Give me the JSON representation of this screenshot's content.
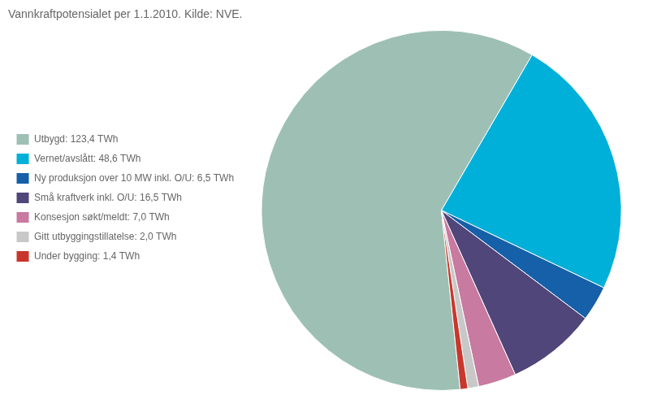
{
  "chart_data": {
    "type": "pie",
    "title": "Vannkraftpotensialet per 1.1.2010. Kilde: NVE.",
    "categories": [
      "Utbygd: 123,4 TWh",
      "Vernet/avslått: 48,6 TWh",
      "Ny produksjon over 10 MW inkl. O/U: 6,5 TWh",
      "Små kraftverk inkl. O/U: 16,5 TWh",
      "Konsesjon søkt/meldt: 7,0 TWh",
      "Gitt utbyggingstillatelse: 2,0 TWh",
      "Under bygging: 1,4 TWh"
    ],
    "values": [
      123.4,
      48.6,
      6.5,
      16.5,
      7.0,
      2.0,
      1.4
    ],
    "colors": [
      "#9ebfb4",
      "#00b0d8",
      "#1560a8",
      "#50467a",
      "#c87aa0",
      "#c8c8c8",
      "#c8372d"
    ],
    "legend": "left"
  }
}
